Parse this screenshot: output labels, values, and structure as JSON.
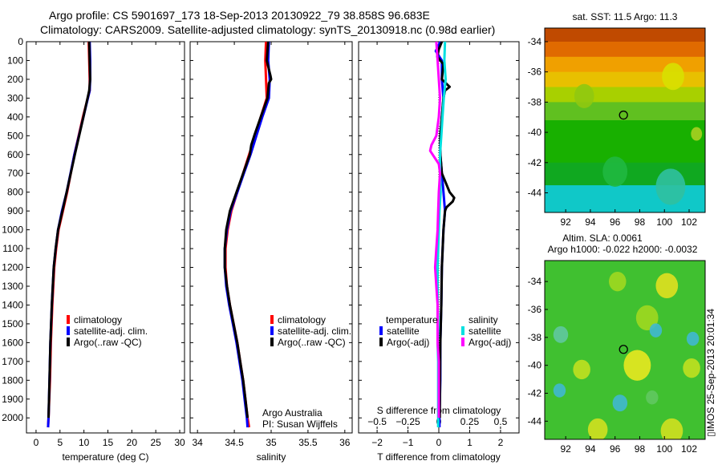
{
  "header": {
    "title1": "Argo profile: CS 5901697_173 18-Sep-2013 20130922_79 38.858S 96.683E",
    "title2": "Climatology: CARS2009. Satellite-adjusted climatology: synTS_20130918.nc (0.98d earlier)"
  },
  "credit": {
    "line1": "Argo Australia",
    "line2": "PI: Susan Wijffels"
  },
  "side_stamp": "▯IMOS 25-Sep-2013 20:01:34",
  "colors": {
    "climatology": "#ff0000",
    "satellite": "#0000ff",
    "argo": "#000000",
    "sal_satellite": "#00e0e0",
    "sal_argo": "#ff00ff"
  },
  "chart_data": [
    {
      "type": "line",
      "id": "temperature",
      "xlabel": "temperature (deg C)",
      "xlim": [
        -2,
        31
      ],
      "ylim": [
        0,
        2080
      ],
      "xticks": [
        0,
        5,
        10,
        15,
        20,
        25,
        30
      ],
      "xtick_labels": [
        "0",
        "5",
        "10",
        "15",
        "20",
        "25",
        "30"
      ],
      "yticks": [
        0,
        100,
        200,
        300,
        400,
        500,
        600,
        700,
        800,
        900,
        1000,
        1100,
        1200,
        1300,
        1400,
        1500,
        1600,
        1700,
        1800,
        1900,
        2000
      ],
      "ytick_labels": [
        "0",
        "100",
        "200",
        "300",
        "400",
        "500",
        "600",
        "700",
        "800",
        "900",
        "1000",
        "1100",
        "1200",
        "1300",
        "1400",
        "1500",
        "1600",
        "1700",
        "1800",
        "1900",
        "2000"
      ],
      "legend": {
        "position": "lower-right",
        "entries": [
          "climatology",
          "satellite-adj. clim.",
          "Argo(..raw -QC)"
        ]
      },
      "series": [
        {
          "name": "climatology",
          "color": "#ff0000",
          "depth": [
            0,
            100,
            200,
            260,
            400,
            600,
            800,
            900,
            1000,
            1100,
            1200,
            1400,
            1600,
            1800,
            2000,
            2050
          ],
          "values": [
            11.0,
            11.1,
            11.2,
            11.2,
            9.8,
            8.0,
            6.5,
            5.6,
            4.7,
            4.2,
            3.8,
            3.4,
            3.1,
            2.9,
            2.6,
            2.5
          ]
        },
        {
          "name": "satellite-adj. clim.",
          "color": "#0000ff",
          "depth": [
            0,
            100,
            200,
            260,
            400,
            600,
            800,
            900,
            1000,
            1100,
            1200,
            1400,
            1600,
            1800,
            2000,
            2050
          ],
          "values": [
            11.2,
            11.3,
            11.3,
            11.2,
            9.9,
            8.0,
            6.4,
            5.4,
            4.6,
            4.1,
            3.7,
            3.3,
            3.0,
            2.8,
            2.6,
            2.5
          ]
        },
        {
          "name": "Argo(..raw -QC)",
          "color": "#000000",
          "depth": [
            0,
            100,
            200,
            260,
            400,
            600,
            800,
            900,
            1000,
            1100,
            1200,
            1400,
            1600,
            1800,
            2000
          ],
          "values": [
            11.1,
            11.2,
            11.3,
            11.1,
            9.9,
            8.1,
            6.4,
            5.5,
            4.6,
            4.1,
            3.7,
            3.3,
            3.0,
            2.8,
            2.6
          ]
        }
      ]
    },
    {
      "type": "line",
      "id": "salinity",
      "xlabel": "salinity",
      "xlim": [
        33.9,
        36.1
      ],
      "ylim": [
        0,
        2080
      ],
      "xticks": [
        34,
        34.5,
        35,
        35.5,
        36
      ],
      "xtick_labels": [
        "34",
        "34.5",
        "35",
        "35.5",
        "36"
      ],
      "legend": {
        "position": "lower-right",
        "entries": [
          "climatology",
          "satellite-adj. clim.",
          "Argo(..raw -QC)"
        ]
      },
      "series": [
        {
          "name": "climatology",
          "color": "#ff0000",
          "depth": [
            0,
            100,
            200,
            300,
            400,
            500,
            600,
            700,
            800,
            900,
            1000,
            1100,
            1200,
            1300,
            1400,
            1500,
            1600,
            1700,
            1800,
            1900,
            2000,
            2050
          ],
          "values": [
            34.93,
            34.92,
            34.93,
            34.94,
            34.86,
            34.79,
            34.7,
            34.62,
            34.54,
            34.46,
            34.41,
            34.38,
            34.38,
            34.4,
            34.44,
            34.49,
            34.54,
            34.58,
            34.62,
            34.65,
            34.68,
            34.7
          ]
        },
        {
          "name": "satellite-adj. clim.",
          "color": "#0000ff",
          "depth": [
            0,
            100,
            200,
            300,
            400,
            500,
            600,
            700,
            800,
            900,
            1000,
            1100,
            1200,
            1300,
            1400,
            1500,
            1600,
            1700,
            1800,
            1900,
            2000,
            2050
          ],
          "values": [
            34.97,
            34.96,
            34.98,
            34.97,
            34.88,
            34.8,
            34.72,
            34.63,
            34.54,
            34.45,
            34.4,
            34.37,
            34.37,
            34.39,
            34.43,
            34.48,
            34.53,
            34.57,
            34.61,
            34.64,
            34.67,
            34.68
          ]
        },
        {
          "name": "Argo(..raw -QC)",
          "color": "#000000",
          "depth": [
            0,
            100,
            180,
            200,
            220,
            300,
            400,
            500,
            550,
            600,
            700,
            800,
            900,
            1000,
            1100,
            1200,
            1300,
            1400,
            1500,
            1600,
            1700,
            1800,
            1900,
            2000
          ],
          "values": [
            34.96,
            34.94,
            34.99,
            35.0,
            34.97,
            34.95,
            34.86,
            34.77,
            34.73,
            34.71,
            34.62,
            34.53,
            34.44,
            34.39,
            34.37,
            34.37,
            34.4,
            34.44,
            34.49,
            34.54,
            34.58,
            34.62,
            34.65,
            34.68
          ]
        }
      ]
    },
    {
      "type": "line",
      "id": "difference",
      "xlabel": "T difference from climatology",
      "top_axis_label": "S difference from climatology",
      "xlim": [
        -2.6,
        2.6
      ],
      "ylim": [
        0,
        2080
      ],
      "xticks": [
        -2,
        -1,
        0,
        1,
        2
      ],
      "xtick_labels": [
        "−2",
        "−1",
        "0",
        "1",
        "2"
      ],
      "sticks": [
        -0.5,
        -0.25,
        0,
        0.25,
        0.5
      ],
      "stick_labels": [
        "−0.5",
        "−0.25",
        "0",
        "0.25",
        "0.5"
      ],
      "s_scale": 4,
      "legend": {
        "position": "lower",
        "headings": [
          "temperature",
          "salinity"
        ],
        "entries": [
          "satellite",
          "Argo(-adj)",
          "satellite",
          "Argo(-adj)"
        ]
      },
      "series": [
        {
          "name": "satellite",
          "group": "temperature",
          "color": "#0000ff",
          "depth": [
            0,
            50,
            100,
            200,
            300,
            400,
            500,
            600,
            700,
            800,
            900,
            1000,
            1200,
            1400,
            1600,
            1800,
            2000,
            2050
          ],
          "values": [
            0.05,
            -0.1,
            0.1,
            0.1,
            0.15,
            0.1,
            0.05,
            0.05,
            0.1,
            0.15,
            0.2,
            0.15,
            0.1,
            0.08,
            0.05,
            0.05,
            0.02,
            0.02
          ]
        },
        {
          "name": "Argo(-adj)",
          "group": "temperature",
          "color": "#000000",
          "depth": [
            0,
            40,
            80,
            120,
            200,
            240,
            260,
            300,
            400,
            500,
            600,
            700,
            800,
            830,
            850,
            880,
            900,
            1000,
            1200,
            1400,
            1600,
            1800,
            2000
          ],
          "values": [
            0.1,
            0.0,
            -0.05,
            0.15,
            0.1,
            0.35,
            0.2,
            0.15,
            0.1,
            0.05,
            0.05,
            0.1,
            0.35,
            0.5,
            0.45,
            0.25,
            0.2,
            0.15,
            0.1,
            0.08,
            0.05,
            0.04,
            0.03
          ]
        },
        {
          "name": "satellite",
          "group": "salinity",
          "color": "#00e0e0",
          "depth": [
            0,
            100,
            200,
            300,
            400,
            500,
            600,
            700,
            800,
            900,
            1000,
            1200,
            1400,
            1500,
            1600,
            1700,
            1800,
            1900,
            2000,
            2050
          ],
          "values": [
            0.05,
            0.045,
            0.055,
            0.04,
            0.03,
            0.02,
            0.01,
            0.01,
            0.015,
            0.005,
            0.0,
            -0.01,
            -0.01,
            -0.005,
            -0.01,
            -0.005,
            -0.005,
            -0.005,
            -0.005,
            -0.005
          ]
        },
        {
          "name": "Argo(-adj)",
          "group": "salinity",
          "color": "#ff00ff",
          "depth": [
            0,
            100,
            200,
            300,
            400,
            500,
            550,
            580,
            600,
            650,
            700,
            800,
            900,
            1000,
            1100,
            1200,
            1300,
            1400,
            1500,
            1600,
            1700,
            1800,
            1900,
            2000
          ],
          "values": [
            -0.02,
            -0.01,
            0.0,
            0.01,
            0.0,
            -0.02,
            -0.06,
            -0.07,
            -0.05,
            0.0,
            0.01,
            0.0,
            -0.005,
            -0.01,
            -0.02,
            -0.03,
            -0.02,
            -0.01,
            -0.01,
            -0.01,
            0.0,
            0.0,
            0.0,
            0.0
          ]
        }
      ]
    },
    {
      "type": "heatmap",
      "id": "sst-map",
      "title": "sat. SST: 11.5 Argo: 11.3",
      "xlim": [
        90.3,
        103.3
      ],
      "ylim": [
        -45.3,
        -33.1
      ],
      "xticks": [
        92,
        94,
        96,
        98,
        100,
        102
      ],
      "xtick_labels": [
        "92",
        "94",
        "96",
        "98",
        "100",
        "102"
      ],
      "yticks": [
        -34,
        -36,
        -38,
        -40,
        -42,
        -44
      ],
      "ytick_labels": [
        "-34",
        "-36",
        "-38",
        "-40",
        "-42",
        "-44"
      ],
      "marker": {
        "lon": 96.683,
        "lat": -38.858
      },
      "rows": [
        {
          "lat_top": -33.1,
          "lat_bottom": -34.0,
          "color": "#c04a00"
        },
        {
          "lat_top": -34.0,
          "lat_bottom": -35.0,
          "color": "#e06a00"
        },
        {
          "lat_top": -35.0,
          "lat_bottom": -36.0,
          "color": "#f0a000"
        },
        {
          "lat_top": -36.0,
          "lat_bottom": -37.0,
          "color": "#e8c000"
        },
        {
          "lat_top": -37.0,
          "lat_bottom": -38.0,
          "color": "#a8d000"
        },
        {
          "lat_top": -38.0,
          "lat_bottom": -39.2,
          "color": "#60c020"
        },
        {
          "lat_top": -39.2,
          "lat_bottom": -42.0,
          "color": "#18b000"
        },
        {
          "lat_top": -42.0,
          "lat_bottom": -43.5,
          "color": "#10a820"
        },
        {
          "lat_top": -43.5,
          "lat_bottom": -45.3,
          "color": "#10c8c8"
        }
      ],
      "blobs": [
        {
          "lon": 100.7,
          "lat": -36.3,
          "r": 0.9,
          "color": "#d8e000"
        },
        {
          "lon": 102.6,
          "lat": -40.1,
          "r": 0.45,
          "color": "#a8d020"
        },
        {
          "lon": 93.5,
          "lat": -37.6,
          "r": 0.8,
          "color": "#90c810"
        },
        {
          "lon": 96.0,
          "lat": -42.6,
          "r": 1.0,
          "color": "#20b840"
        },
        {
          "lon": 100.5,
          "lat": -43.6,
          "r": 1.2,
          "color": "#30c0a0"
        }
      ]
    },
    {
      "type": "heatmap",
      "id": "sla-map",
      "title": "Altim. SLA: 0.0061",
      "subtitle": "Argo h1000: -0.022 h2000: -0.0032",
      "xlim": [
        90.3,
        103.3
      ],
      "ylim": [
        -45.3,
        -32.5
      ],
      "xticks": [
        92,
        94,
        96,
        98,
        100,
        102
      ],
      "xtick_labels": [
        "92",
        "94",
        "96",
        "98",
        "100",
        "102"
      ],
      "yticks": [
        -34,
        -36,
        -38,
        -40,
        -42,
        -44
      ],
      "ytick_labels": [
        "-34",
        "-36",
        "-38",
        "-40",
        "-42",
        "-44"
      ],
      "marker": {
        "lon": 96.683,
        "lat": -38.858
      },
      "background": "#40c030",
      "blobs": [
        {
          "lon": 100.2,
          "lat": -34.3,
          "r": 0.9,
          "color": "#e0e020"
        },
        {
          "lon": 96.2,
          "lat": -34.0,
          "r": 0.7,
          "color": "#a0d820"
        },
        {
          "lon": 98.6,
          "lat": -36.6,
          "r": 0.9,
          "color": "#a0d820"
        },
        {
          "lon": 91.6,
          "lat": -37.8,
          "r": 0.6,
          "color": "#60c8a0"
        },
        {
          "lon": 99.3,
          "lat": -37.5,
          "r": 0.5,
          "color": "#40b8d0"
        },
        {
          "lon": 102.3,
          "lat": -38.1,
          "r": 0.5,
          "color": "#40b8d0"
        },
        {
          "lon": 97.8,
          "lat": -40.0,
          "r": 1.1,
          "color": "#e8e820"
        },
        {
          "lon": 93.3,
          "lat": -40.3,
          "r": 0.7,
          "color": "#c0e020"
        },
        {
          "lon": 102.2,
          "lat": -40.2,
          "r": 0.7,
          "color": "#c0e020"
        },
        {
          "lon": 91.5,
          "lat": -41.8,
          "r": 0.5,
          "color": "#40b8d0"
        },
        {
          "lon": 96.4,
          "lat": -42.7,
          "r": 0.6,
          "color": "#40b8d0"
        },
        {
          "lon": 94.6,
          "lat": -44.6,
          "r": 0.8,
          "color": "#d0e020"
        },
        {
          "lon": 100.6,
          "lat": -44.7,
          "r": 0.9,
          "color": "#d0e020"
        },
        {
          "lon": 99.0,
          "lat": -42.3,
          "r": 0.5,
          "color": "#60c860"
        }
      ]
    }
  ]
}
